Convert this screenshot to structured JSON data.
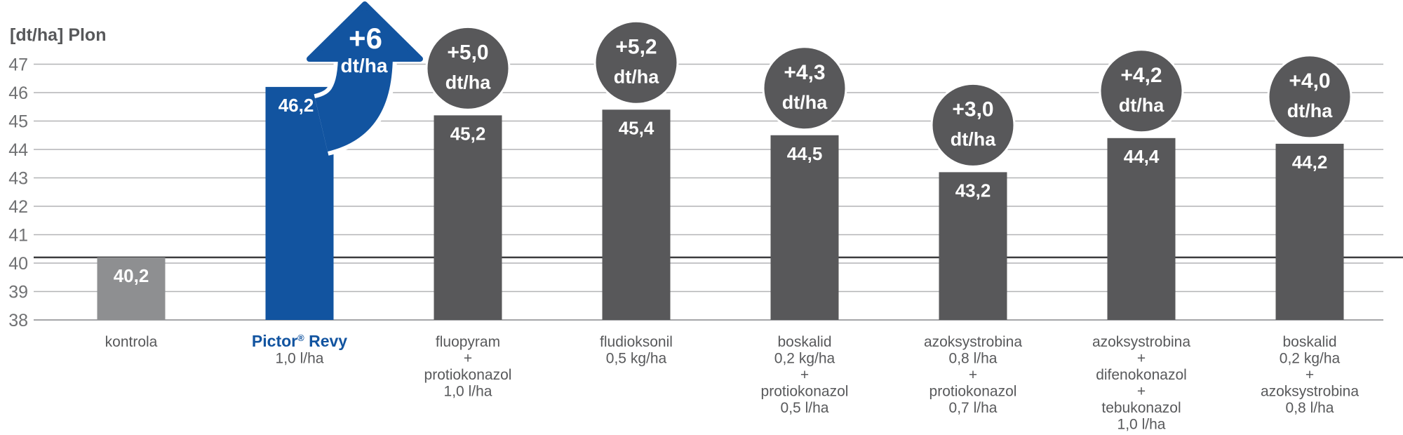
{
  "chart_data": {
    "type": "bar",
    "title": "",
    "ylabel": "[dt/ha] Plon",
    "xlabel": "",
    "ylim": [
      38,
      47
    ],
    "yticks": [
      38,
      39,
      40,
      41,
      42,
      43,
      44,
      45,
      46,
      47
    ],
    "grid": true,
    "legend": null,
    "reference_line": 40.2,
    "categories": [
      [
        "kontrola"
      ],
      [
        "Pictor® Revy",
        "1,0 l/ha"
      ],
      [
        "fluopyram",
        "+",
        "protiokonazol",
        "1,0 l/ha"
      ],
      [
        "fludioksonil",
        "0,5 kg/ha"
      ],
      [
        "boskalid",
        "0,2 kg/ha",
        "+",
        "protiokonazol",
        "0,5 l/ha"
      ],
      [
        "azoksystrobina",
        "0,8 l/ha",
        "+",
        "protiokonazol",
        "0,7 l/ha"
      ],
      [
        "azoksystrobina",
        "+",
        "difenokonazol",
        "+",
        "tebukonazol",
        "1,0 l/ha"
      ],
      [
        "boskalid",
        "0,2 kg/ha",
        "+",
        "azoksystrobina",
        "0,8 l/ha"
      ]
    ],
    "values": [
      40.2,
      46.2,
      45.2,
      45.4,
      44.5,
      43.2,
      44.4,
      44.2
    ],
    "value_labels": [
      "40,2",
      "46,2",
      "45,2",
      "45,4",
      "44,5",
      "43,2",
      "44,4",
      "44,2"
    ],
    "delta_labels": [
      null,
      "+6",
      "+5,0",
      "+5,2",
      "+4,3",
      "+3,0",
      "+4,2",
      "+4,0"
    ],
    "delta_unit": "dt/ha",
    "delta_styles": [
      "none",
      "arrow",
      "circle",
      "circle",
      "circle",
      "circle",
      "circle",
      "circle"
    ],
    "bar_styles": [
      "control",
      "highlight",
      "standard",
      "standard",
      "standard",
      "standard",
      "standard",
      "standard"
    ],
    "highlight_category_index": 1,
    "colors": {
      "control_bar": "#8e8f91",
      "highlight_bar": "#1254a0",
      "standard_bar": "#58585a",
      "delta_circle": "#58585a",
      "arrow": "#1254a0",
      "gridline": "#b3b4b6",
      "axis_baseline": "#a5a6a8",
      "reference_line": "#3d3d3f",
      "axis_text": "#707173",
      "category_text": "#58595b",
      "value_text": "#ffffff",
      "brand_text": "#1254a0"
    }
  }
}
